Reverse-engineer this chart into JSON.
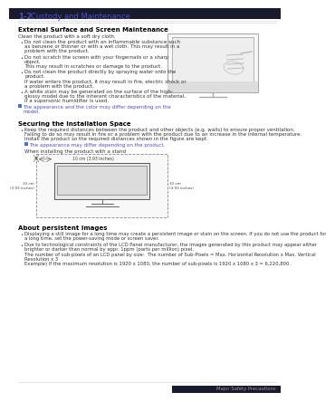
{
  "section_num": "1-2",
  "section_title": "Custody and Maintenance",
  "header_color": "#4b4fc4",
  "bg_color": "#ffffff",
  "footer_text": "Major Safety Precautions",
  "s1_title": "External Surface and Screen Maintenance",
  "s1_intro": "Clean the product with a soft dry cloth.",
  "s1_bullets": [
    "Do not clean the product with an inflammable substance such\nas benzene or thinner or with a wet cloth. This may result in a\nproblem with the product.",
    "Do not scratch the screen with your fingernails or a sharp\nobject.\nThis may result in scratches or damage to the product.",
    "Do not clean the product directly by spraying water onto the\nproduct.\nIf water enters the product, it may result in fire, electric shock or\na problem with the product.",
    "A white stain may be generated on the surface of the high-\nglossy model due to the inherent characteristics of the material,\nif a supersonic humidifier is used."
  ],
  "s1_note": "The appearance and the color may differ depending on the\nmodel.",
  "s2_title": "Securing the Installation Space",
  "s2_bullets": [
    "Keep the required distances between the product and other objects (e.g. walls) to ensure proper ventilation.\nFailing to do so may result in fire or a problem with the product due to an increase in the internal temperature.\nInstall the product so the required distances shown in the figure are kept."
  ],
  "s2_note": "The appearance may differ depending on the product.",
  "s2_diag_label": "When installing the product with a stand",
  "s2_diag_top": "10 cm (3.93 inches)",
  "s2_diag_left": "10 cm\n(3.93 inches)",
  "s2_diag_right": "10 cm\n(3.93 inches)",
  "s3_title": "About persistent images",
  "s3_bullets": [
    "Displaying a still image for a long time may create a persistent image or stain on the screen. If you do not use the product for\na long time, set the power-saving mode or screen saver.",
    "Due to technological constraints of the LCD Panel manufacturer, the images generated by this product may appear either\nbrighter or darker than normal by appr. 1ppm (parts per million) pixel.\nThe number of sub-pixels of an LCD panel by size:  The number of Sub-Pixels = Max. Horizontal Resolution x Max. Vertical\nResolution x 3\nExample) If the maximum resolution is 1920 x 1080, the number of sub-pixels is 1920 x 1080 x 3 = 6,220,800."
  ]
}
